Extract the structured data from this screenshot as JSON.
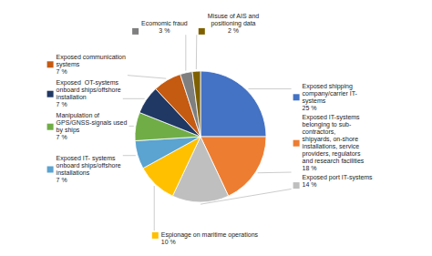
{
  "chart_data": {
    "type": "pie",
    "categories": [
      "Exposed shipping\ncompany/carrier IT-\nsystems\n25 %",
      "Exposed IT-systems\nbelonging to sub-\ncontractors,\nshipyards, on-shore\ninstallations, service\nproviders, regulators\nand research facilities\n18 %",
      "Exposed port IT-systems\n14 %",
      "Espionage on maritime operations\n10 %",
      "Exposed IT- systems\nonboard ships/offshore\ninstallations\n7 %",
      "Manipulation of\nGPS/GNSS-signals used\nby ships\n7 %",
      "Exposed  OT-systems\nonboard ships/offshore\ninstallation\n7 %",
      "Exposed communication\nsystems\n7 %",
      "Ecomomic fraud\n3 %",
      "Misuse of AIS and\npositioning data\n2 %"
    ],
    "values": [
      25,
      18,
      14,
      10,
      7,
      7,
      7,
      7,
      3,
      2
    ],
    "colors": [
      "#4472C4",
      "#ED7D31",
      "#BFBFBF",
      "#FFC000",
      "#5BA3D0",
      "#70AD47",
      "#203864",
      "#C55A11",
      "#7F7F7F",
      "#7F6000"
    ]
  }
}
